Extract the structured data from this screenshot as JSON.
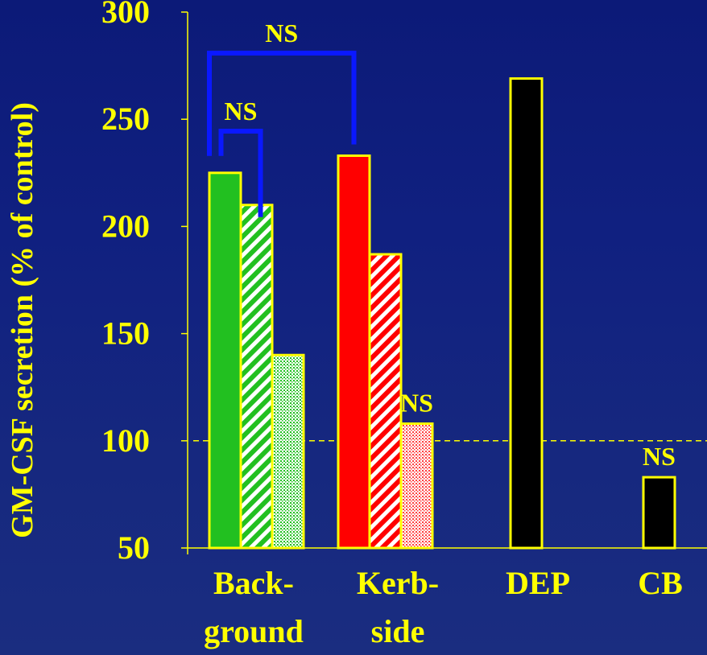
{
  "chart_data": {
    "type": "bar",
    "title": "",
    "ylabel": "GM-CSF secretion  (% of control)",
    "xlabel": "",
    "ylim": [
      50,
      300
    ],
    "yticks": [
      "300",
      "250",
      "200",
      "150",
      "100",
      "50"
    ],
    "ytick_values": [
      300,
      250,
      200,
      150,
      100,
      50
    ],
    "reference_line": 100,
    "categories": [
      {
        "lines": [
          "Back-",
          "ground"
        ]
      },
      {
        "lines": [
          "Kerb-",
          "side"
        ]
      },
      {
        "lines": [
          "DEP"
        ]
      },
      {
        "lines": [
          "CB"
        ]
      }
    ],
    "bars": [
      {
        "group": 0,
        "slot": 0,
        "value": 225,
        "fill": "solid",
        "color": "#22c020"
      },
      {
        "group": 0,
        "slot": 1,
        "value": 210,
        "fill": "hatch",
        "color": "#22c020"
      },
      {
        "group": 0,
        "slot": 2,
        "value": 140,
        "fill": "dots",
        "color": "#22c020"
      },
      {
        "group": 1,
        "slot": 0,
        "value": 233,
        "fill": "solid",
        "color": "#ff0000"
      },
      {
        "group": 1,
        "slot": 1,
        "value": 187,
        "fill": "hatch",
        "color": "#ff0000"
      },
      {
        "group": 1,
        "slot": 2,
        "value": 108,
        "fill": "dots",
        "color": "#ff0000"
      },
      {
        "group": 2,
        "slot": 0,
        "value": 269,
        "fill": "solid",
        "color": "#000000"
      },
      {
        "group": 3,
        "slot": 0,
        "value": 83,
        "fill": "solid",
        "color": "#000000"
      }
    ],
    "annotations": [
      {
        "text": "NS",
        "compares": [
          0,
          3
        ]
      },
      {
        "text": "NS",
        "compares": [
          0,
          1
        ]
      },
      {
        "text": "NS",
        "bar": 5
      },
      {
        "text": "NS",
        "bar": 7
      }
    ],
    "colors": {
      "axis": "#ffff00",
      "text": "#ffff00",
      "bracket": "#0a18ff",
      "bar_outline": "#ffff00"
    }
  }
}
